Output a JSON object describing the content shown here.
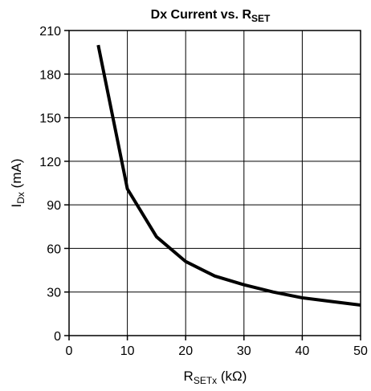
{
  "chart_data": {
    "type": "line",
    "title": {
      "main": "Dx Current vs. R",
      "sub": "SET"
    },
    "xlabel": {
      "main": "R",
      "sub": "SETx",
      "rest": " (kΩ)"
    },
    "ylabel": {
      "main": "I",
      "sub": "Dx",
      "rest": " (mA)"
    },
    "xlim": [
      0,
      50
    ],
    "ylim": [
      0,
      210
    ],
    "xticks": [
      0,
      10,
      20,
      30,
      40,
      50
    ],
    "yticks": [
      0,
      30,
      60,
      90,
      120,
      150,
      180,
      210
    ],
    "grid": true,
    "series": [
      {
        "color": "#000000",
        "x": [
          5,
          10,
          15,
          20,
          25,
          30,
          35,
          40,
          45,
          50
        ],
        "y": [
          200,
          101,
          68,
          51,
          41,
          35,
          30,
          26,
          23.5,
          21
        ]
      }
    ]
  }
}
